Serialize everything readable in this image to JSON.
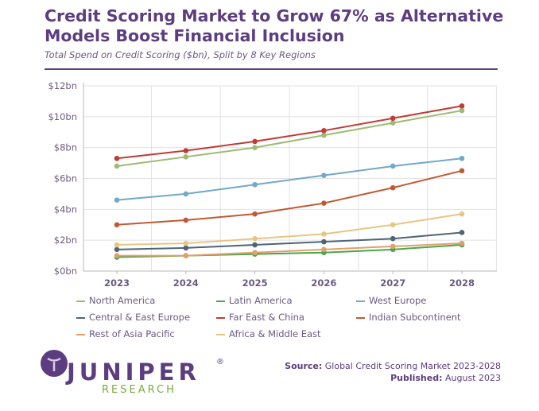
{
  "header": {
    "title": "Credit Scoring Market to Grow 67% as Alternative Models Boost Financial Inclusion",
    "subtitle": "Total Spend on Credit Scoring ($bn), Split by 8 Key Regions"
  },
  "chart_data": {
    "type": "line",
    "title": "Credit Scoring Market to Grow 67% as Alternative Models Boost Financial Inclusion",
    "xlabel": "",
    "ylabel": "",
    "x": [
      "2023",
      "2024",
      "2025",
      "2026",
      "2027",
      "2028"
    ],
    "ylim": [
      0,
      12
    ],
    "yticks": [
      0,
      2,
      4,
      6,
      8,
      10,
      12
    ],
    "ytick_labels": [
      "$0bn",
      "$2bn",
      "$4bn",
      "$6bn",
      "$8bn",
      "$10bn",
      "$12bn"
    ],
    "grid": true,
    "legend_position": "bottom",
    "series": [
      {
        "name": "North America",
        "color": "#9dbb72",
        "values": [
          6.8,
          7.4,
          8.0,
          8.8,
          9.6,
          10.4
        ]
      },
      {
        "name": "Latin America",
        "color": "#4ca54a",
        "values": [
          0.9,
          1.0,
          1.1,
          1.2,
          1.4,
          1.7
        ]
      },
      {
        "name": "West Europe",
        "color": "#72a9c6",
        "values": [
          4.6,
          5.0,
          5.6,
          6.2,
          6.8,
          7.3
        ]
      },
      {
        "name": "Central & East Europe",
        "color": "#4f6478",
        "values": [
          1.4,
          1.5,
          1.7,
          1.9,
          2.1,
          2.5
        ]
      },
      {
        "name": "Far East & China",
        "color": "#c23b35",
        "values": [
          7.3,
          7.8,
          8.4,
          9.1,
          9.9,
          10.7
        ]
      },
      {
        "name": "Indian Subcontinent",
        "color": "#c05a34",
        "values": [
          3.0,
          3.3,
          3.7,
          4.4,
          5.4,
          6.5
        ]
      },
      {
        "name": "Rest of Asia Pacific",
        "color": "#e0a06d",
        "values": [
          1.0,
          1.0,
          1.2,
          1.4,
          1.6,
          1.8
        ]
      },
      {
        "name": "Africa & Middle East",
        "color": "#e7c684",
        "values": [
          1.7,
          1.8,
          2.1,
          2.4,
          3.0,
          3.7
        ]
      }
    ]
  },
  "footer": {
    "logo_text": "JUNIPER",
    "logo_sub": "RESEARCH",
    "logo_reg": "®",
    "source_label": "Source:",
    "source_value": "Global Credit Scoring Market 2023-2028",
    "published_label": "Published:",
    "published_value": "August 2023"
  },
  "colors": {
    "brand": "#5c3d7f",
    "logo_green": "#7aaa3f"
  }
}
